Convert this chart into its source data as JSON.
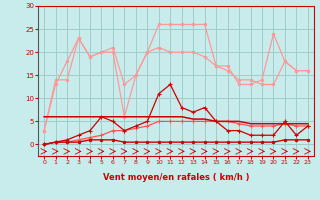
{
  "x": [
    0,
    1,
    2,
    3,
    4,
    5,
    6,
    7,
    8,
    9,
    10,
    11,
    12,
    13,
    14,
    15,
    16,
    17,
    18,
    19,
    20,
    21,
    22,
    23
  ],
  "rafales": [
    3,
    14,
    14,
    23,
    19,
    20,
    20,
    6,
    15,
    20,
    26,
    26,
    26,
    26,
    26,
    17,
    17,
    13,
    13,
    14,
    24,
    18,
    16,
    16
  ],
  "moyen_light": [
    3,
    13,
    18,
    23,
    19,
    20,
    21,
    13,
    15,
    20,
    21,
    20,
    20,
    20,
    19,
    17,
    16,
    14,
    14,
    13,
    13,
    18,
    16,
    16
  ],
  "series_dark_main": [
    0,
    0.5,
    1,
    2,
    3,
    6,
    5,
    3,
    4,
    5,
    11,
    13,
    8,
    7,
    8,
    5,
    3,
    3,
    2,
    2,
    2,
    5,
    2,
    4
  ],
  "series_dark_low": [
    0,
    0.5,
    0.5,
    1,
    1.5,
    2,
    3,
    3,
    3.5,
    4,
    5,
    5,
    5,
    5,
    5,
    5,
    5,
    4.5,
    4,
    4,
    4,
    4.5,
    4,
    4
  ],
  "series_flat": [
    6,
    6,
    6,
    6,
    6,
    6,
    6,
    6,
    6,
    6,
    6,
    6,
    6,
    5.5,
    5.5,
    5,
    5,
    5,
    4.5,
    4.5,
    4.5,
    4.5,
    4.5,
    4.5
  ],
  "series_zero": [
    0,
    0.5,
    0.5,
    0.5,
    1,
    1,
    1,
    0.5,
    0.5,
    0.5,
    0.5,
    0.5,
    0.5,
    0.5,
    0.5,
    0.5,
    0.5,
    0.5,
    0.5,
    0.5,
    0.5,
    1,
    1,
    1
  ],
  "background_color": "#c8ecec",
  "grid_color": "#a0cccc",
  "color_dark_red": "#cc0000",
  "color_light_red": "#ff9999",
  "color_medium_red": "#ff5555",
  "xlabel": "Vent moyen/en rafales ( km/h )",
  "yticks": [
    0,
    5,
    10,
    15,
    20,
    25,
    30
  ],
  "xlim": [
    -0.5,
    23.5
  ],
  "ylim": [
    -2.5,
    30
  ]
}
